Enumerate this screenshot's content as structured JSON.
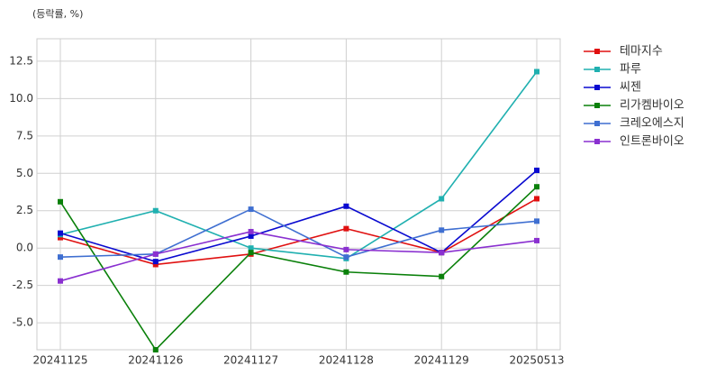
{
  "chart_data": {
    "type": "line",
    "ylabel": "(등락률, %)",
    "categories": [
      "20241125",
      "20241126",
      "20241127",
      "20241128",
      "20241129",
      "20250513"
    ],
    "series": [
      {
        "name": "테마지수",
        "color": "#e01010",
        "values": [
          0.7,
          -1.1,
          -0.4,
          1.3,
          -0.3,
          3.3
        ]
      },
      {
        "name": "파루",
        "color": "#20b0b0",
        "values": [
          0.9,
          2.5,
          0.0,
          -0.7,
          3.3,
          11.8
        ]
      },
      {
        "name": "씨젠",
        "color": "#0a0ad0",
        "values": [
          1.0,
          -0.9,
          0.8,
          2.8,
          -0.3,
          5.2
        ]
      },
      {
        "name": "리가켐바이오",
        "color": "#0a800a",
        "values": [
          3.1,
          -6.8,
          -0.3,
          -1.6,
          -1.9,
          4.1
        ]
      },
      {
        "name": "크레오에스지",
        "color": "#3f6fd1",
        "values": [
          -0.6,
          -0.4,
          2.6,
          -0.6,
          1.2,
          1.8
        ]
      },
      {
        "name": "인트론바이오",
        "color": "#8a30d0",
        "values": [
          -2.2,
          -0.4,
          1.1,
          -0.1,
          -0.3,
          0.5
        ]
      }
    ],
    "ylim": [
      -6.8,
      14.0
    ],
    "yticks": [
      {
        "value": -5,
        "label": "-5.0"
      },
      -2.5,
      {
        "value": 0,
        "label": "0.0"
      },
      2.5,
      {
        "value": 5,
        "label": "5.0"
      },
      7.5,
      {
        "value": 10,
        "label": "10.0"
      },
      12.5
    ],
    "grid": true,
    "legend": "outside-right"
  }
}
